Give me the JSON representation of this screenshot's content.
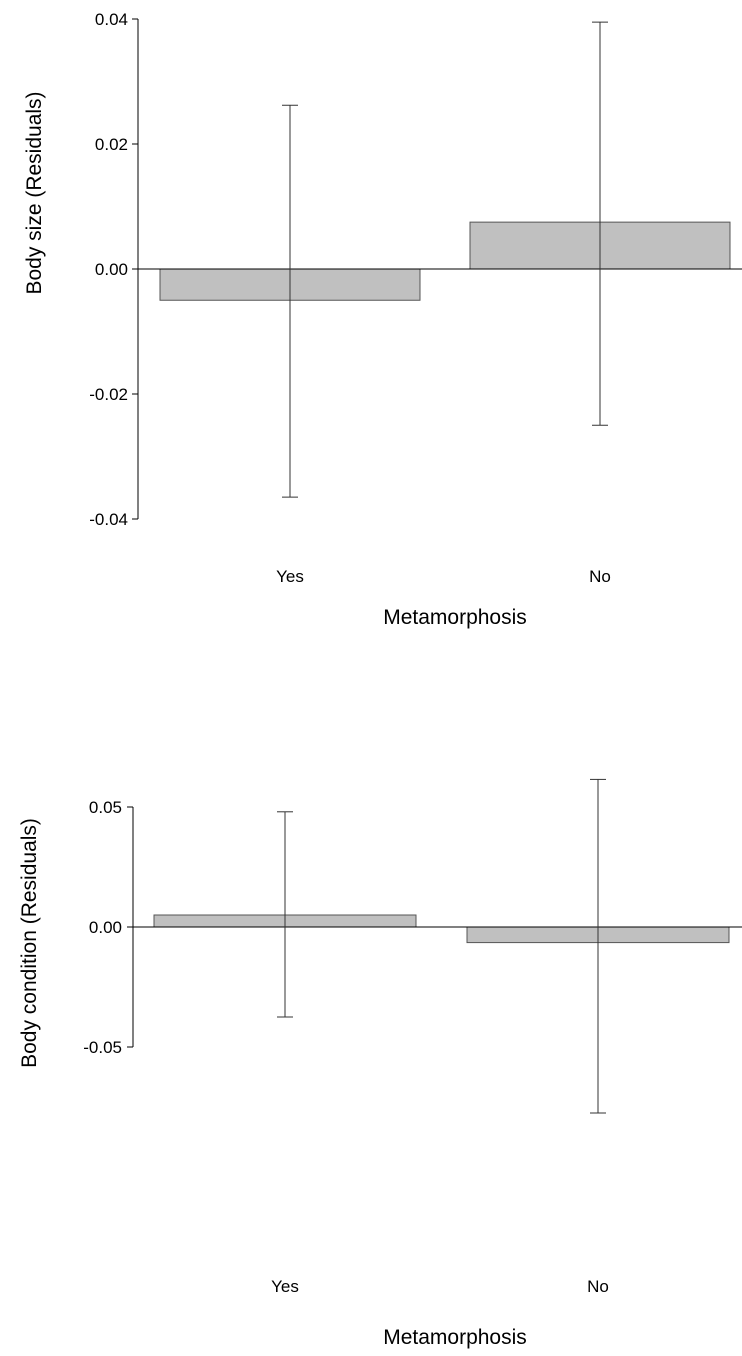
{
  "chart_data": [
    {
      "type": "bar",
      "categories": [
        "Yes",
        "No"
      ],
      "values": [
        -0.005,
        0.0075
      ],
      "error_low": [
        -0.0365,
        -0.025
      ],
      "error_high": [
        0.0262,
        0.0395
      ],
      "ylim": [
        -0.04,
        0.04
      ],
      "yticks": [
        "0.04",
        "0.02",
        "0.00",
        "-0.02",
        "-0.04"
      ],
      "ylabel": "Body size (Residuals)",
      "xlabel": "Metamorphosis",
      "grid": false,
      "bar_color": "#c0c0c0"
    },
    {
      "type": "bar",
      "categories": [
        "Yes",
        "No"
      ],
      "values": [
        0.005,
        -0.0065
      ],
      "error_low": [
        -0.0375,
        -0.0775
      ],
      "error_high": [
        0.048,
        0.0615
      ],
      "ylim": [
        -0.07,
        0.06
      ],
      "yticks": [
        "0.05",
        "0.00",
        "-0.05"
      ],
      "ylabel": "Body condition (Residuals)",
      "xlabel": "Metamorphosis",
      "grid": false,
      "bar_color": "#c0c0c0"
    }
  ]
}
